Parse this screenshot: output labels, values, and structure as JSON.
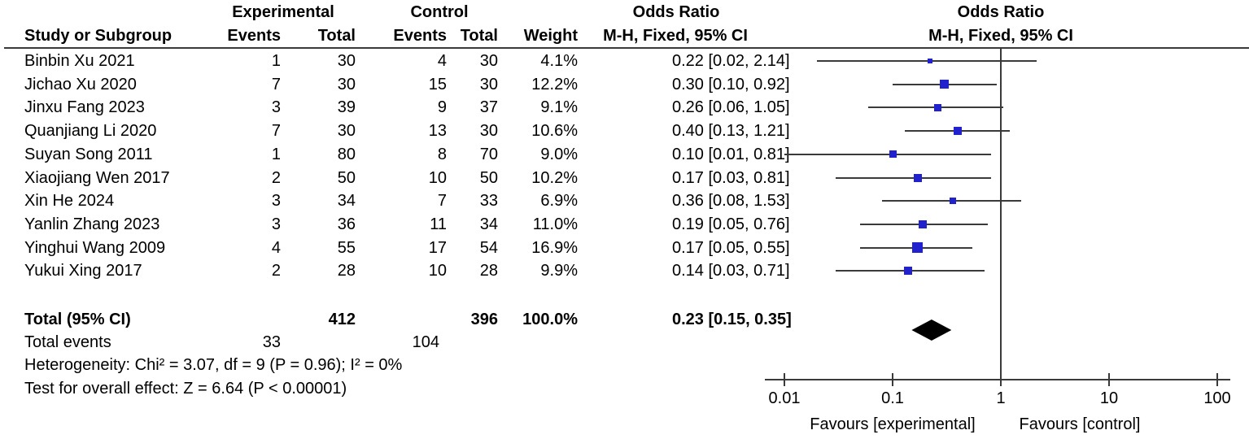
{
  "headers": {
    "group_experimental": "Experimental",
    "group_control": "Control",
    "study": "Study or Subgroup",
    "events": "Events",
    "total": "Total",
    "weight": "Weight",
    "or_title": "Odds Ratio",
    "or_subtitle": "M-H, Fixed, 95% CI",
    "plot_title": "Odds Ratio",
    "plot_subtitle": "M-H, Fixed, 95% CI"
  },
  "chart_data": {
    "type": "forest_plot",
    "effect_measure": "Odds Ratio",
    "method": "M-H, Fixed, 95% CI",
    "x_axis": {
      "scale": "log10",
      "ticks": [
        0.01,
        0.1,
        1,
        10,
        100
      ],
      "label_left": "Favours [experimental]",
      "label_right": "Favours [control]"
    },
    "studies": [
      {
        "name": "Binbin Xu 2021",
        "exp_events": 1,
        "exp_total": 30,
        "ctrl_events": 4,
        "ctrl_total": 30,
        "weight": "4.1%",
        "weight_pct": 4.1,
        "or": 0.22,
        "ci_low": 0.02,
        "ci_high": 2.14,
        "or_label": "0.22 [0.02, 2.14]"
      },
      {
        "name": "Jichao Xu 2020",
        "exp_events": 7,
        "exp_total": 30,
        "ctrl_events": 15,
        "ctrl_total": 30,
        "weight": "12.2%",
        "weight_pct": 12.2,
        "or": 0.3,
        "ci_low": 0.1,
        "ci_high": 0.92,
        "or_label": "0.30 [0.10, 0.92]"
      },
      {
        "name": "Jinxu Fang 2023",
        "exp_events": 3,
        "exp_total": 39,
        "ctrl_events": 9,
        "ctrl_total": 37,
        "weight": "9.1%",
        "weight_pct": 9.1,
        "or": 0.26,
        "ci_low": 0.06,
        "ci_high": 1.05,
        "or_label": "0.26 [0.06, 1.05]"
      },
      {
        "name": "Quanjiang Li 2020",
        "exp_events": 7,
        "exp_total": 30,
        "ctrl_events": 13,
        "ctrl_total": 30,
        "weight": "10.6%",
        "weight_pct": 10.6,
        "or": 0.4,
        "ci_low": 0.13,
        "ci_high": 1.21,
        "or_label": "0.40 [0.13, 1.21]"
      },
      {
        "name": "Suyan Song 2011",
        "exp_events": 1,
        "exp_total": 80,
        "ctrl_events": 8,
        "ctrl_total": 70,
        "weight": "9.0%",
        "weight_pct": 9.0,
        "or": 0.1,
        "ci_low": 0.01,
        "ci_high": 0.81,
        "or_label": "0.10 [0.01, 0.81]"
      },
      {
        "name": "Xiaojiang Wen 2017",
        "exp_events": 2,
        "exp_total": 50,
        "ctrl_events": 10,
        "ctrl_total": 50,
        "weight": "10.2%",
        "weight_pct": 10.2,
        "or": 0.17,
        "ci_low": 0.03,
        "ci_high": 0.81,
        "or_label": "0.17 [0.03, 0.81]"
      },
      {
        "name": "Xin He 2024",
        "exp_events": 3,
        "exp_total": 34,
        "ctrl_events": 7,
        "ctrl_total": 33,
        "weight": "6.9%",
        "weight_pct": 6.9,
        "or": 0.36,
        "ci_low": 0.08,
        "ci_high": 1.53,
        "or_label": "0.36 [0.08, 1.53]"
      },
      {
        "name": "Yanlin Zhang 2023",
        "exp_events": 3,
        "exp_total": 36,
        "ctrl_events": 11,
        "ctrl_total": 34,
        "weight": "11.0%",
        "weight_pct": 11.0,
        "or": 0.19,
        "ci_low": 0.05,
        "ci_high": 0.76,
        "or_label": "0.19 [0.05, 0.76]"
      },
      {
        "name": "Yinghui Wang 2009",
        "exp_events": 4,
        "exp_total": 55,
        "ctrl_events": 17,
        "ctrl_total": 54,
        "weight": "16.9%",
        "weight_pct": 16.9,
        "or": 0.17,
        "ci_low": 0.05,
        "ci_high": 0.55,
        "or_label": "0.17 [0.05, 0.55]"
      },
      {
        "name": "Yukui Xing 2017",
        "exp_events": 2,
        "exp_total": 28,
        "ctrl_events": 10,
        "ctrl_total": 28,
        "weight": "9.9%",
        "weight_pct": 9.9,
        "or": 0.14,
        "ci_low": 0.03,
        "ci_high": 0.71,
        "or_label": "0.14 [0.03, 0.71]"
      }
    ],
    "total": {
      "label": "Total (95% CI)",
      "exp_total": 412,
      "ctrl_total": 396,
      "weight": "100.0%",
      "or": 0.23,
      "ci_low": 0.15,
      "ci_high": 0.35,
      "or_label": "0.23 [0.15, 0.35]"
    },
    "total_events": {
      "label": "Total events",
      "experimental": 33,
      "control": 104
    },
    "footnotes": {
      "heterogeneity": "Heterogeneity: Chi² = 3.07, df = 9 (P = 0.96); I² = 0%",
      "overall_effect": "Test for overall effect: Z = 6.64 (P < 0.00001)"
    }
  },
  "colors": {
    "square": "#2121cd",
    "diamond": "#000000",
    "line": "#3a3a3a"
  }
}
